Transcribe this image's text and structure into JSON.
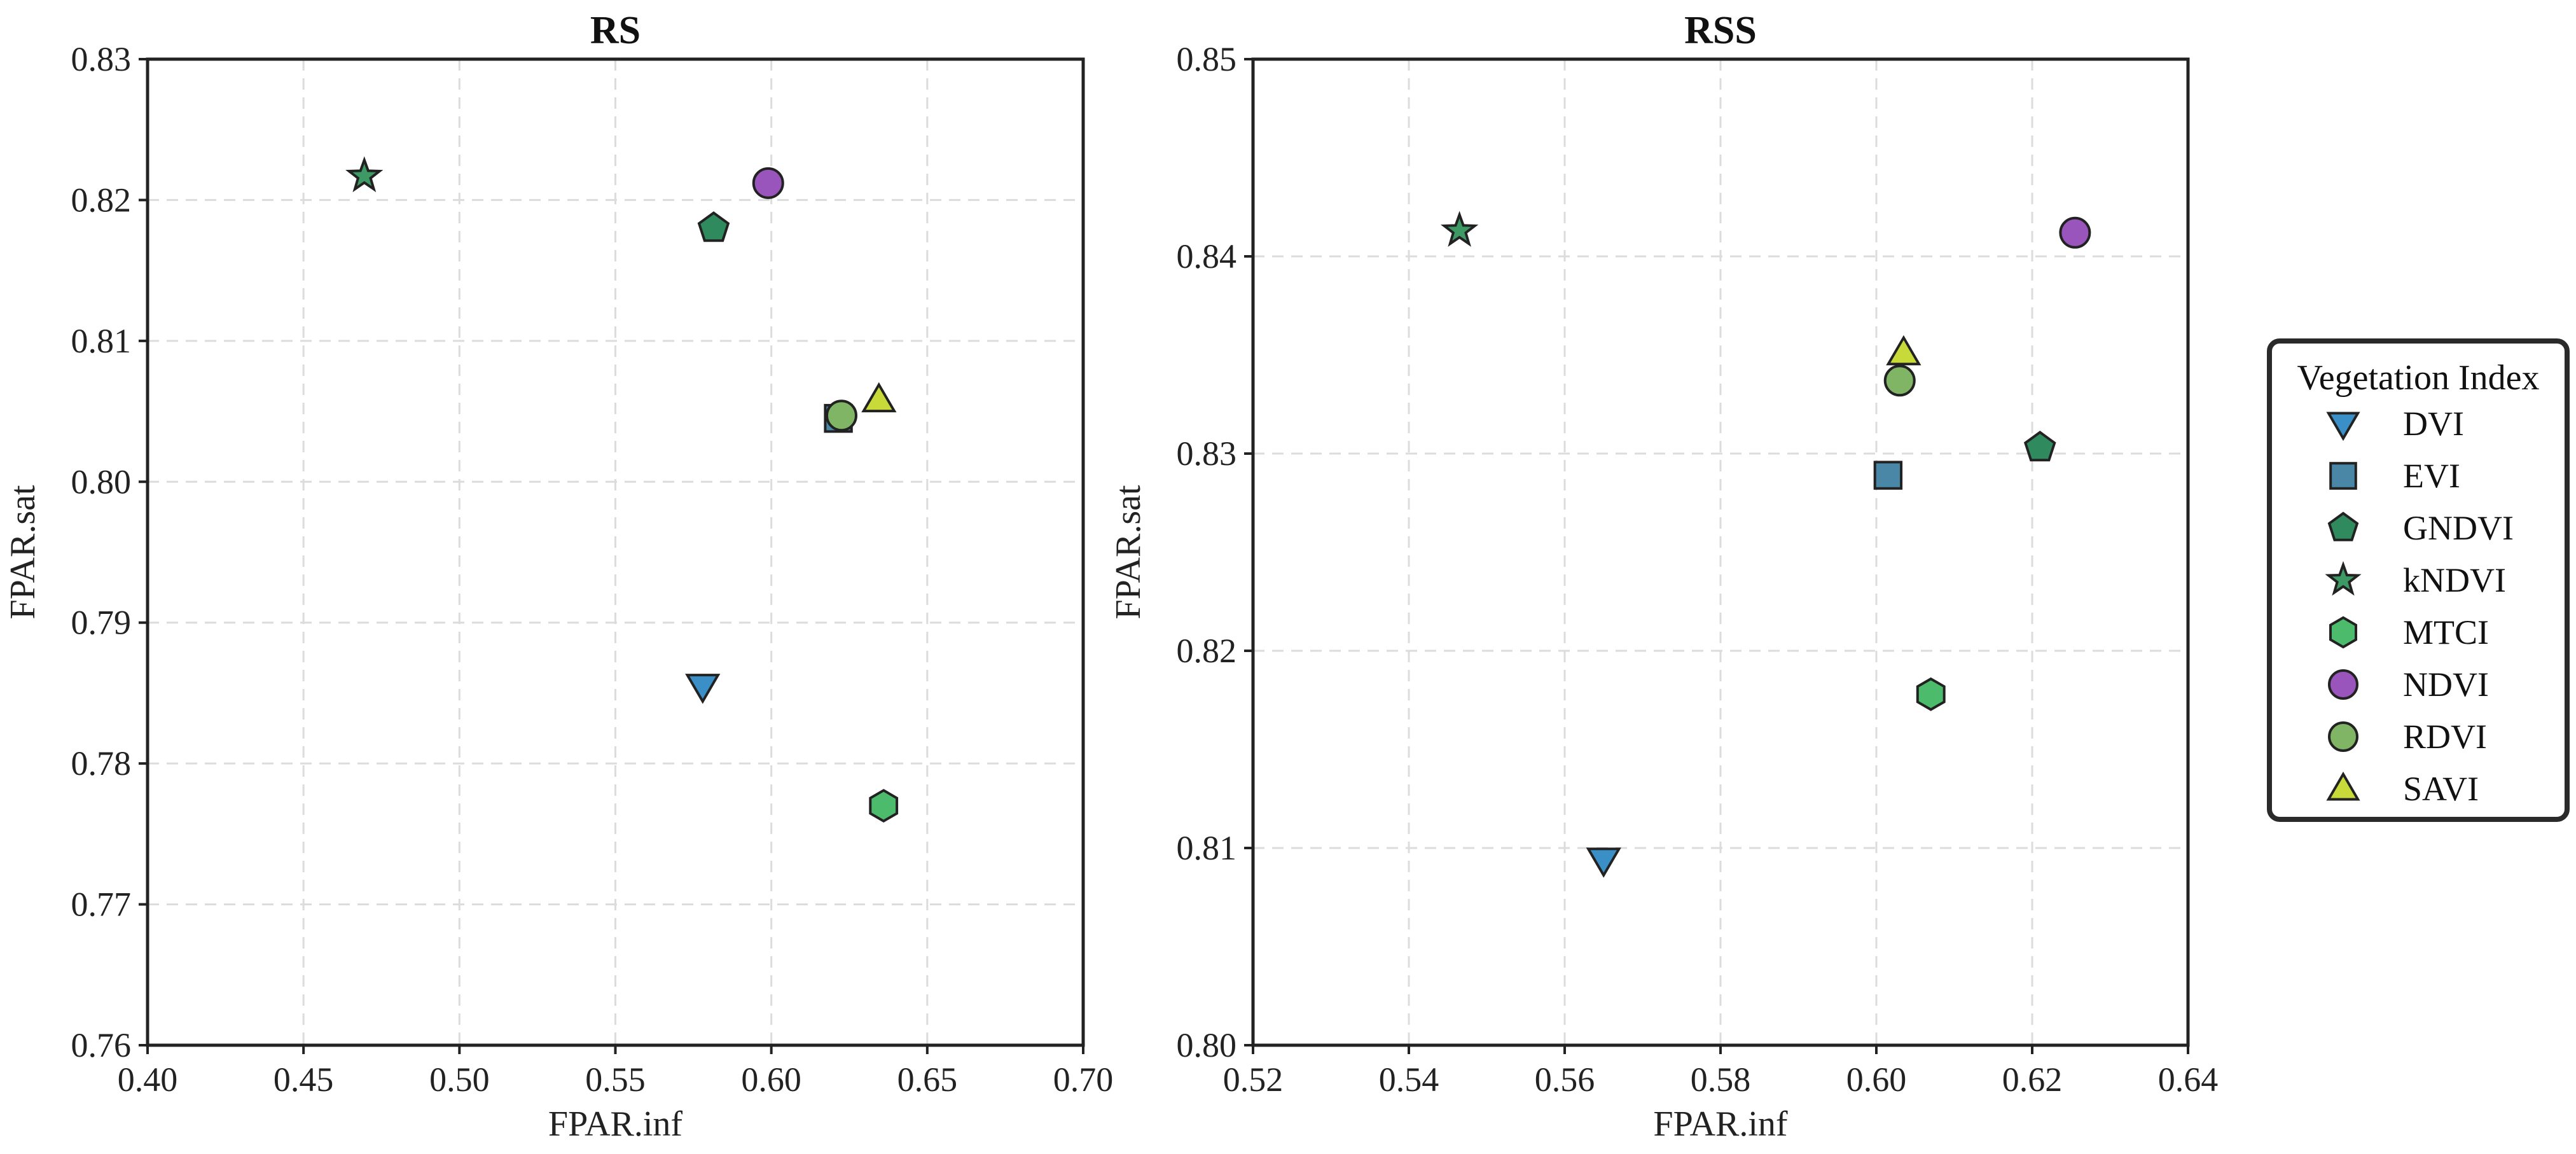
{
  "chart_data": [
    {
      "type": "scatter",
      "title": "RS",
      "xlabel": "FPAR.inf",
      "ylabel": "FPAR.sat",
      "xlim": [
        0.4,
        0.7
      ],
      "ylim": [
        0.76,
        0.83
      ],
      "xticks": [
        "0.40",
        "0.45",
        "0.50",
        "0.55",
        "0.60",
        "0.65",
        "0.70"
      ],
      "yticks": [
        "0.76",
        "0.77",
        "0.78",
        "0.79",
        "0.80",
        "0.81",
        "0.82",
        "0.83"
      ],
      "grid": true,
      "points": [
        {
          "name": "DVI",
          "x": 0.578,
          "y": 0.7855
        },
        {
          "name": "EVI",
          "x": 0.6215,
          "y": 0.8045
        },
        {
          "name": "GNDVI",
          "x": 0.5815,
          "y": 0.818
        },
        {
          "name": "kNDVI",
          "x": 0.4695,
          "y": 0.8217
        },
        {
          "name": "MTCI",
          "x": 0.636,
          "y": 0.777
        },
        {
          "name": "NDVI",
          "x": 0.599,
          "y": 0.8212
        },
        {
          "name": "RDVI",
          "x": 0.6225,
          "y": 0.8047
        },
        {
          "name": "SAVI",
          "x": 0.6345,
          "y": 0.8058
        }
      ]
    },
    {
      "type": "scatter",
      "title": "RSS",
      "xlabel": "FPAR.inf",
      "ylabel": "FPAR.sat",
      "xlim": [
        0.52,
        0.64
      ],
      "ylim": [
        0.8,
        0.85
      ],
      "xticks": [
        "0.52",
        "0.54",
        "0.56",
        "0.58",
        "0.60",
        "0.62",
        "0.64"
      ],
      "yticks": [
        "0.80",
        "0.81",
        "0.82",
        "0.83",
        "0.84",
        "0.85"
      ],
      "grid": true,
      "points": [
        {
          "name": "DVI",
          "x": 0.565,
          "y": 0.8094
        },
        {
          "name": "EVI",
          "x": 0.6015,
          "y": 0.8289
        },
        {
          "name": "GNDVI",
          "x": 0.621,
          "y": 0.8303
        },
        {
          "name": "kNDVI",
          "x": 0.5465,
          "y": 0.8413
        },
        {
          "name": "MTCI",
          "x": 0.607,
          "y": 0.8178
        },
        {
          "name": "NDVI",
          "x": 0.6255,
          "y": 0.8412
        },
        {
          "name": "RDVI",
          "x": 0.603,
          "y": 0.8337
        },
        {
          "name": "SAVI",
          "x": 0.6035,
          "y": 0.8351
        }
      ]
    }
  ],
  "legend": {
    "title": "Vegetation Index",
    "placement": "right",
    "entries": [
      {
        "name": "DVI",
        "marker": "triangle-down",
        "color": "#3a8fc7"
      },
      {
        "name": "EVI",
        "marker": "square",
        "color": "#4a86a6"
      },
      {
        "name": "GNDVI",
        "marker": "pentagon",
        "color": "#2f8a5e"
      },
      {
        "name": "kNDVI",
        "marker": "star",
        "color": "#3d9a65"
      },
      {
        "name": "MTCI",
        "marker": "hexagon",
        "color": "#4cbb6c"
      },
      {
        "name": "NDVI",
        "marker": "circle",
        "color": "#9a55bd"
      },
      {
        "name": "RDVI",
        "marker": "circle",
        "color": "#7fb564"
      },
      {
        "name": "SAVI",
        "marker": "triangle-up",
        "color": "#c8d93a"
      }
    ]
  }
}
